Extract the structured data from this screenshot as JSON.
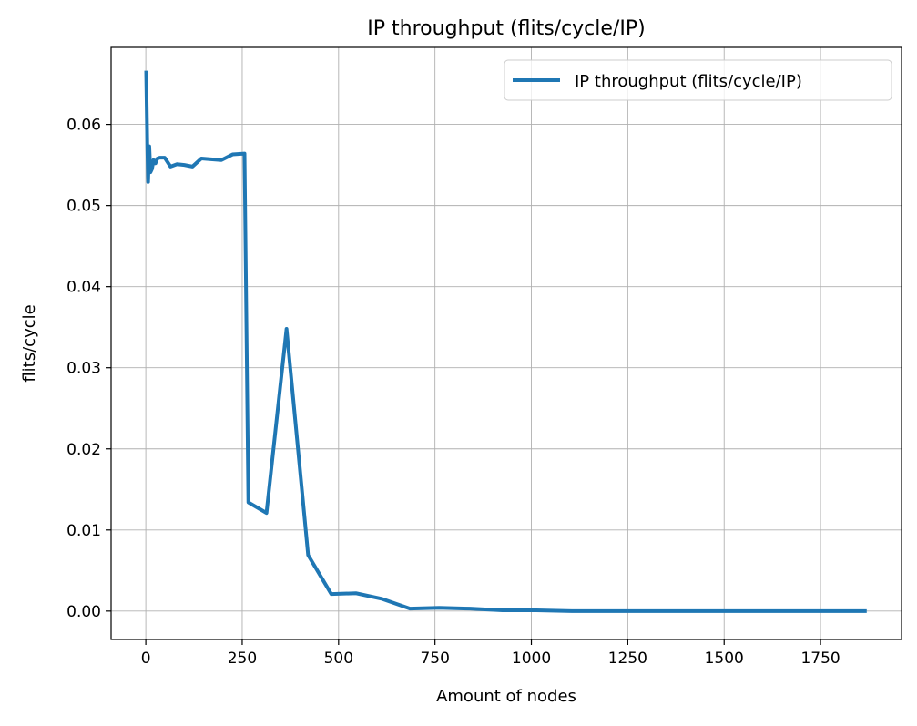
{
  "chart_data": {
    "type": "line",
    "title": "IP throughput (flits/cycle/IP)",
    "xlabel": "Amount of nodes",
    "ylabel": "flits/cycle",
    "xlim": [
      -90,
      1960
    ],
    "ylim": [
      -0.0035,
      0.0695
    ],
    "xticks": [
      0,
      250,
      500,
      750,
      1000,
      1250,
      1500,
      1750
    ],
    "xtick_labels": [
      "0",
      "250",
      "500",
      "750",
      "1000",
      "1250",
      "1500",
      "1750"
    ],
    "yticks": [
      0.0,
      0.01,
      0.02,
      0.03,
      0.04,
      0.05,
      0.06
    ],
    "ytick_labels": [
      "0.00",
      "0.01",
      "0.02",
      "0.03",
      "0.04",
      "0.05",
      "0.06"
    ],
    "grid": true,
    "legend_position": "top-right",
    "series": [
      {
        "name": "IP throughput (flits/cycle/IP)",
        "color": "#1f77b4",
        "x": [
          1,
          4,
          6,
          9,
          12,
          16,
          20,
          25,
          30,
          36,
          49,
          64,
          81,
          100,
          121,
          144,
          169,
          196,
          225,
          256,
          266,
          313,
          365,
          421,
          481,
          545,
          613,
          685,
          761,
          841,
          925,
          1013,
          1105,
          1201,
          1301,
          1405,
          1513,
          1625,
          1741,
          1865
        ],
        "y": [
          0.0664,
          0.057,
          0.0529,
          0.0573,
          0.0541,
          0.0545,
          0.0556,
          0.0552,
          0.0558,
          0.0559,
          0.0559,
          0.0548,
          0.0551,
          0.055,
          0.0548,
          0.0558,
          0.0557,
          0.0556,
          0.0563,
          0.0564,
          0.0134,
          0.0121,
          0.0348,
          0.0069,
          0.0021,
          0.0022,
          0.0015,
          0.0003,
          0.0004,
          0.0003,
          0.0001,
          0.0001,
          0.0,
          0.0,
          0.0,
          0.0,
          0.0,
          0.0,
          0.0,
          0.0
        ]
      }
    ]
  }
}
